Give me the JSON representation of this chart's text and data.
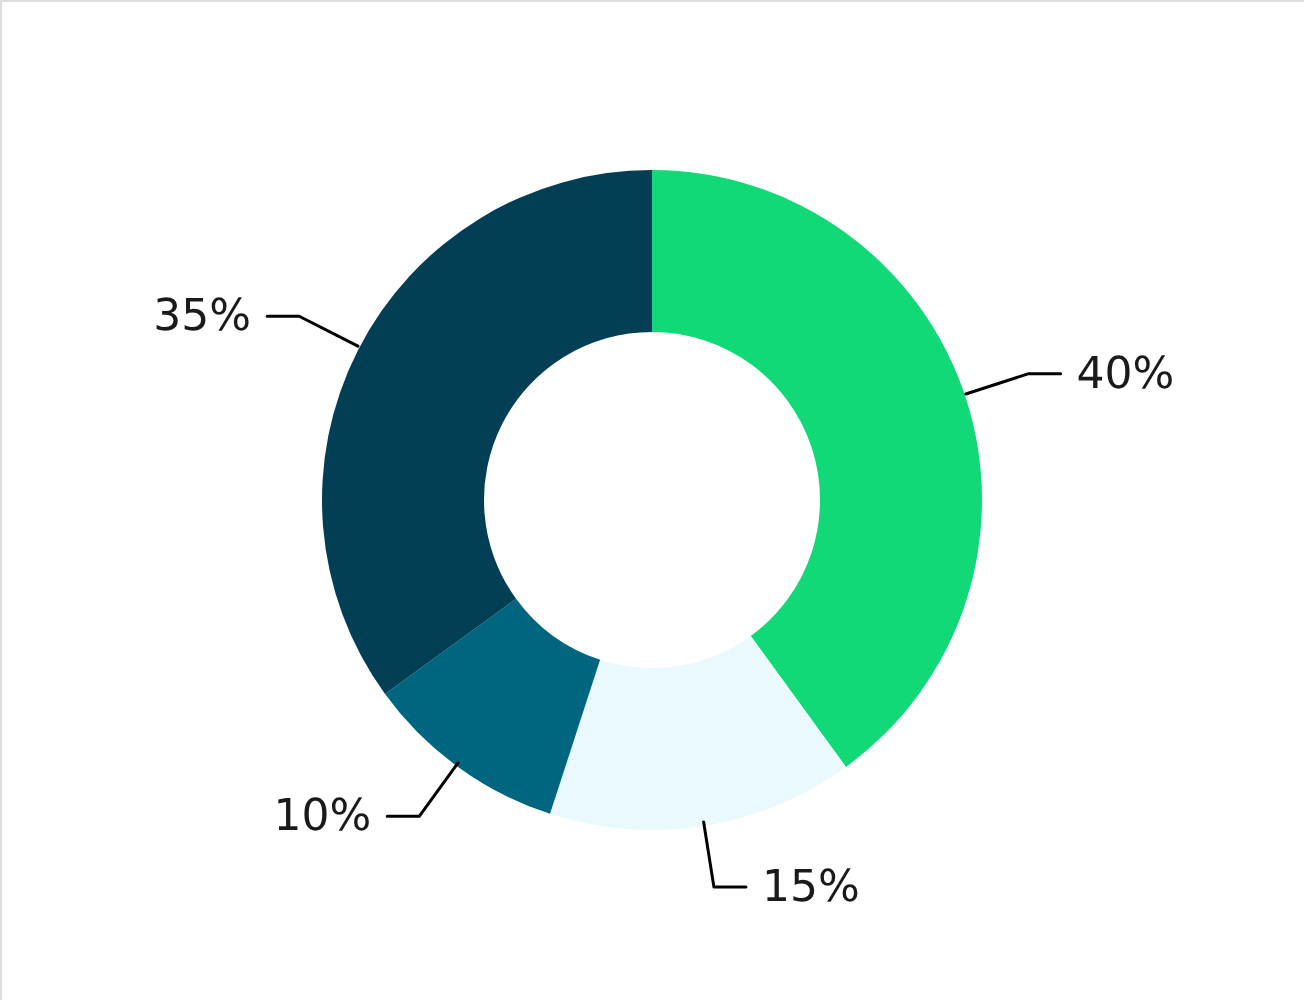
{
  "chart_data": {
    "type": "donut",
    "categories": [
      null,
      null,
      null,
      null
    ],
    "values": [
      40,
      15,
      10,
      35
    ],
    "colors": [
      "#12d977",
      "#e9f9fd",
      "#00657e",
      "#023f55"
    ],
    "value_labels": [
      "40%",
      "15%",
      "10%",
      "35%"
    ]
  }
}
